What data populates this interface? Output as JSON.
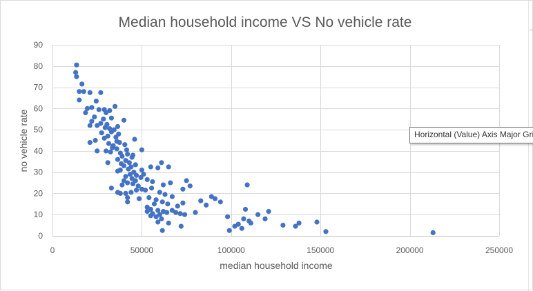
{
  "chart_data": {
    "type": "scatter",
    "title": "Median household income VS No vehicle rate",
    "xlabel": "median household income",
    "ylabel": "no vehicle rate",
    "xlim": [
      0,
      250000
    ],
    "ylim": [
      0,
      90
    ],
    "xticks": [
      0,
      50000,
      100000,
      150000,
      200000,
      250000
    ],
    "xtick_labels": [
      "0",
      "50000",
      "100000",
      "150000",
      "200000",
      "250000"
    ],
    "yticks": [
      0,
      10,
      20,
      30,
      40,
      50,
      60,
      70,
      80,
      90
    ],
    "ytick_labels": [
      "0",
      "10",
      "20",
      "30",
      "40",
      "50",
      "60",
      "70",
      "80",
      "90"
    ],
    "grid": true,
    "legend": "none",
    "marker_color": "#4472c4",
    "points": [
      [
        13500,
        80.5
      ],
      [
        13000,
        77
      ],
      [
        13500,
        75
      ],
      [
        16500,
        71.5
      ],
      [
        15000,
        68
      ],
      [
        17500,
        68
      ],
      [
        21000,
        67.5
      ],
      [
        27000,
        67.5
      ],
      [
        15000,
        64
      ],
      [
        24500,
        63.5
      ],
      [
        22000,
        60.5
      ],
      [
        19500,
        60
      ],
      [
        35000,
        61
      ],
      [
        29000,
        59.5
      ],
      [
        32000,
        59
      ],
      [
        26000,
        59.5
      ],
      [
        30000,
        58
      ],
      [
        18500,
        58
      ],
      [
        23500,
        56
      ],
      [
        33000,
        55.5
      ],
      [
        28500,
        55
      ],
      [
        22000,
        54
      ],
      [
        25000,
        52
      ],
      [
        27000,
        53
      ],
      [
        30500,
        52.5
      ],
      [
        21000,
        52
      ],
      [
        29500,
        51
      ],
      [
        32000,
        50.5
      ],
      [
        34500,
        50
      ],
      [
        36500,
        51.5
      ],
      [
        40000,
        54.5
      ],
      [
        33000,
        49
      ],
      [
        27500,
        48.5
      ],
      [
        37000,
        48
      ],
      [
        31000,
        47
      ],
      [
        35500,
        46.5
      ],
      [
        29000,
        46
      ],
      [
        24000,
        45
      ],
      [
        36000,
        44.5
      ],
      [
        21000,
        44
      ],
      [
        46000,
        45.5
      ],
      [
        31500,
        43.5
      ],
      [
        34000,
        42.5
      ],
      [
        37500,
        44
      ],
      [
        40500,
        43
      ],
      [
        33500,
        41.5
      ],
      [
        36000,
        41
      ],
      [
        41500,
        40.5
      ],
      [
        25000,
        40
      ],
      [
        30000,
        40
      ],
      [
        32500,
        39.5
      ],
      [
        38000,
        39
      ],
      [
        42000,
        38.5
      ],
      [
        45000,
        38
      ],
      [
        50000,
        40.5
      ],
      [
        44500,
        37
      ],
      [
        39000,
        37.5
      ],
      [
        36500,
        36
      ],
      [
        41000,
        35.5
      ],
      [
        43000,
        34.5
      ],
      [
        38500,
        34
      ],
      [
        31000,
        34.5
      ],
      [
        46500,
        33.5
      ],
      [
        40000,
        33
      ],
      [
        44000,
        32.5
      ],
      [
        42500,
        31.5
      ],
      [
        38000,
        31
      ],
      [
        36500,
        30.5
      ],
      [
        45500,
        30
      ],
      [
        50000,
        31
      ],
      [
        55000,
        32.5
      ],
      [
        61000,
        34.5
      ],
      [
        65000,
        32.5
      ],
      [
        59000,
        32
      ],
      [
        51000,
        29
      ],
      [
        43500,
        29
      ],
      [
        47000,
        28.5
      ],
      [
        49500,
        27.5
      ],
      [
        41000,
        28
      ],
      [
        44500,
        27
      ],
      [
        46500,
        26
      ],
      [
        40000,
        26
      ],
      [
        42000,
        25
      ],
      [
        45000,
        24.5
      ],
      [
        39000,
        24
      ],
      [
        48000,
        23.5
      ],
      [
        53000,
        26.5
      ],
      [
        56000,
        25.5
      ],
      [
        62000,
        24
      ],
      [
        66000,
        25
      ],
      [
        50000,
        22
      ],
      [
        47000,
        21.5
      ],
      [
        44000,
        20.5
      ],
      [
        41000,
        20
      ],
      [
        38000,
        20
      ],
      [
        36500,
        20.5
      ],
      [
        33000,
        22.5
      ],
      [
        52000,
        21.5
      ],
      [
        55500,
        22.5
      ],
      [
        60000,
        20.5
      ],
      [
        63000,
        19.5
      ],
      [
        67000,
        18.5
      ],
      [
        42000,
        18
      ],
      [
        48500,
        17.5
      ],
      [
        42000,
        16
      ],
      [
        54000,
        18
      ],
      [
        58000,
        17
      ],
      [
        61500,
        16
      ],
      [
        64500,
        15
      ],
      [
        70000,
        14
      ],
      [
        73000,
        15.5
      ],
      [
        57000,
        15
      ],
      [
        53000,
        13.5
      ],
      [
        55000,
        12.5
      ],
      [
        59000,
        12
      ],
      [
        62000,
        11.5
      ],
      [
        64000,
        11
      ],
      [
        67000,
        12
      ],
      [
        69000,
        11
      ],
      [
        71500,
        10.5
      ],
      [
        74000,
        10
      ],
      [
        56000,
        10.5
      ],
      [
        60000,
        10
      ],
      [
        58000,
        9
      ],
      [
        61000,
        8
      ],
      [
        65000,
        6
      ],
      [
        59000,
        6.5
      ],
      [
        55000,
        9.5
      ],
      [
        53000,
        11.5
      ],
      [
        72000,
        4.5
      ],
      [
        61500,
        2.5
      ],
      [
        73000,
        22
      ],
      [
        75000,
        26
      ],
      [
        77000,
        23.5
      ],
      [
        80000,
        11
      ],
      [
        83000,
        16.5
      ],
      [
        86000,
        14.5
      ],
      [
        89000,
        18.5
      ],
      [
        91000,
        17.5
      ],
      [
        94000,
        16
      ],
      [
        98000,
        9
      ],
      [
        102000,
        4.5
      ],
      [
        104000,
        5.5
      ],
      [
        107000,
        8
      ],
      [
        108000,
        12.5
      ],
      [
        109000,
        24
      ],
      [
        110000,
        7
      ],
      [
        106000,
        3.5
      ],
      [
        99000,
        2.5
      ],
      [
        111000,
        6
      ],
      [
        115000,
        10
      ],
      [
        119000,
        8
      ],
      [
        121000,
        11.5
      ],
      [
        129000,
        5
      ],
      [
        136000,
        4.5
      ],
      [
        138000,
        6
      ],
      [
        148000,
        6.5
      ],
      [
        153000,
        2
      ],
      [
        213000,
        1.5
      ]
    ]
  },
  "tooltip": {
    "text": "Horizontal (Value) Axis Major Gridlines"
  }
}
